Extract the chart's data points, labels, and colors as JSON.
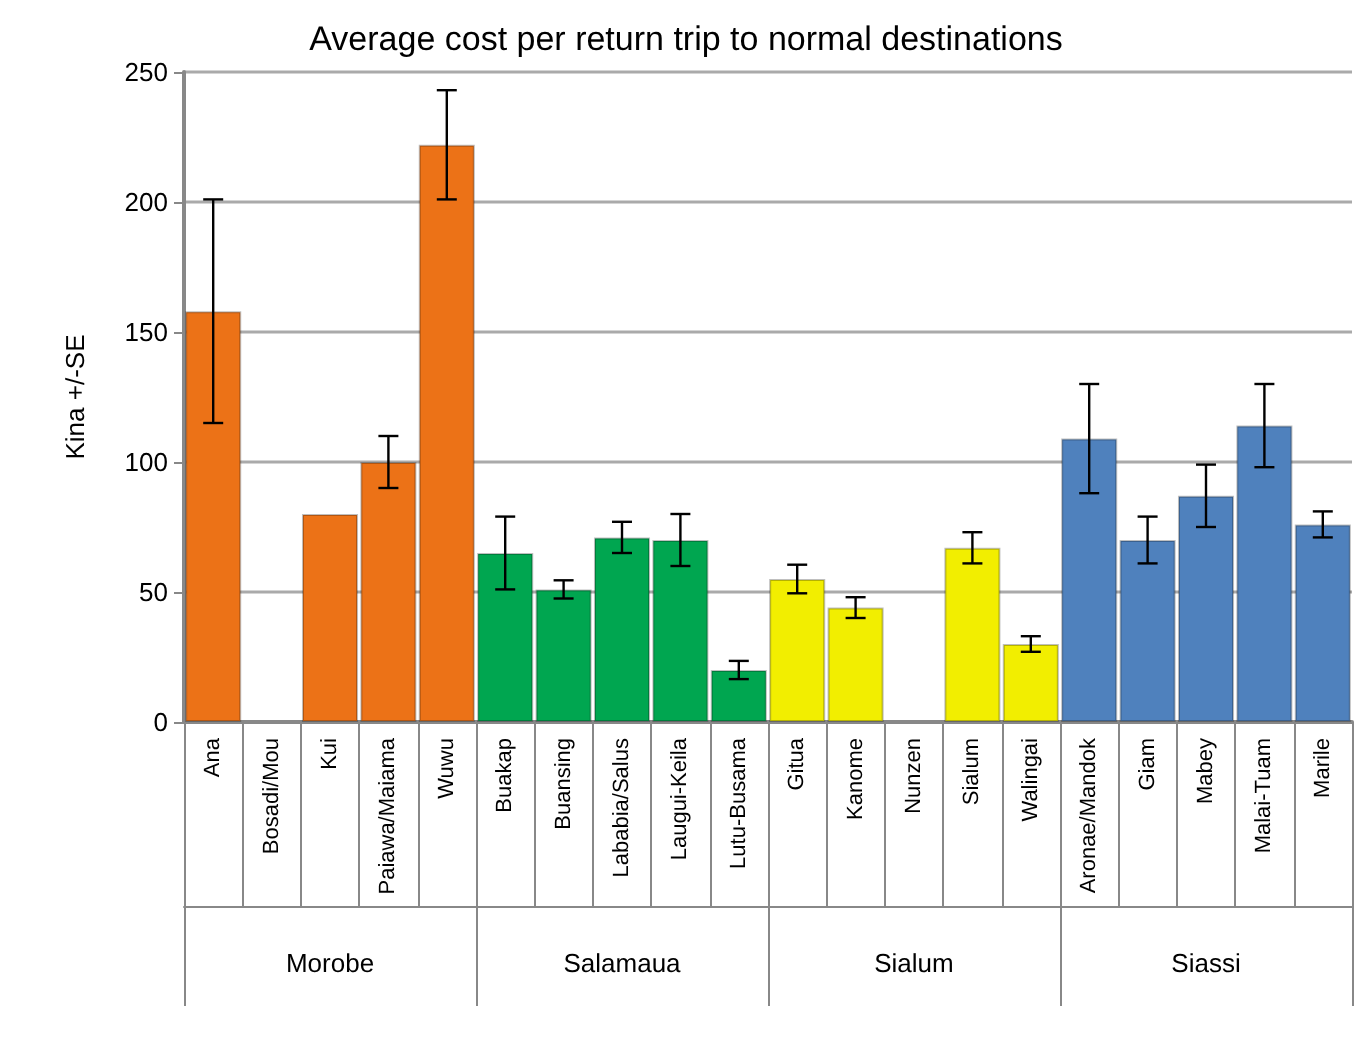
{
  "chart_data": {
    "type": "bar",
    "title": "Average cost per return trip to normal destinations",
    "ylabel": "Kina +/-SE",
    "categories": [
      "Ana",
      "Bosadi/Mou",
      "Kui",
      "Paiawa/Maiama",
      "Wuwu",
      "Buakap",
      "Buansing",
      "Lababia/Salus",
      "Laugui-Keila",
      "Lutu-Busama",
      "Gitua",
      "Kanome",
      "Nunzen",
      "Sialum",
      "Walingai",
      "Aronae/Mandok",
      "Giam",
      "Mabey",
      "Malai-Tuam",
      "Marile"
    ],
    "values": [
      158,
      null,
      80,
      100,
      222,
      65,
      51,
      71,
      70,
      20,
      55,
      44,
      null,
      67,
      30,
      109,
      70,
      87,
      114,
      76
    ],
    "errors": [
      43,
      null,
      null,
      10,
      21,
      14,
      3.5,
      6,
      10,
      3.5,
      5.5,
      4,
      null,
      6,
      3,
      21,
      9,
      12,
      16,
      5
    ],
    "colors": [
      "#ec7217",
      "#ec7217",
      "#ec7217",
      "#ec7217",
      "#ec7217",
      "#00a650",
      "#00a650",
      "#00a650",
      "#00a650",
      "#00a650",
      "#f2ee00",
      "#f2ee00",
      "#f2ee00",
      "#f2ee00",
      "#f2ee00",
      "#4f81bd",
      "#4f81bd",
      "#4f81bd",
      "#4f81bd",
      "#4f81bd"
    ],
    "annotations": [
      "Morobe",
      "Salamaua",
      "Sialum",
      "Siassi"
    ],
    "ylim": [
      0,
      250
    ],
    "yticks": [
      0,
      50,
      100,
      150,
      200,
      250
    ],
    "grid": "y"
  }
}
